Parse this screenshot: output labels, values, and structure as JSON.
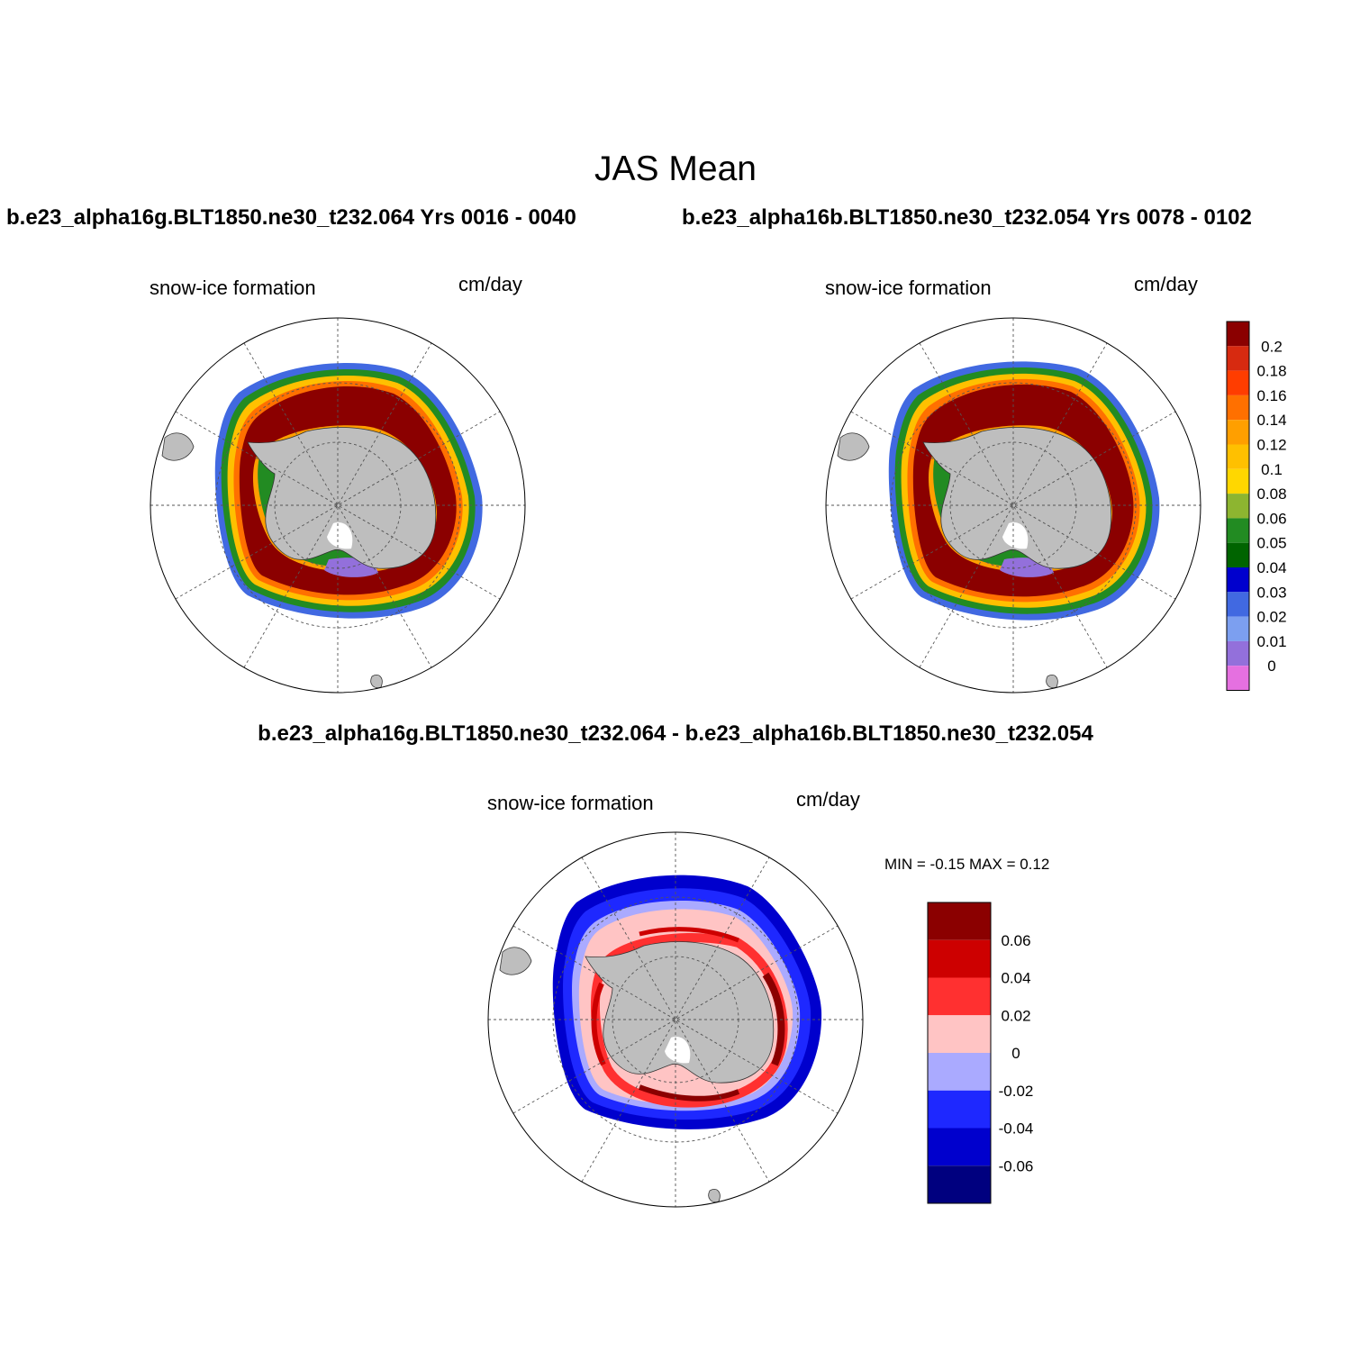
{
  "title": "JAS Mean",
  "runs": {
    "left": "b.e23_alpha16g.BLT1850.ne30_t232.064  Yrs 0016 - 0040",
    "right": "b.e23_alpha16b.BLT1850.ne30_t232.054  Yrs 0078 - 0102"
  },
  "variable": "snow-ice formation",
  "units": "cm/day",
  "difference_title": "b.e23_alpha16g.BLT1850.ne30_t232.064 - b.e23_alpha16b.BLT1850.ne30_t232.054",
  "stats": "MIN =  -0.15 MAX =   0.12",
  "colors": {
    "land": "#bebebe",
    "graticule": "#555555",
    "main_scale": [
      "#e570e0",
      "#9370db",
      "#7c9ff0",
      "#4169e1",
      "#0000cd",
      "#006400",
      "#228b22",
      "#8db530",
      "#ffd700",
      "#ffc000",
      "#ff9f00",
      "#ff7000",
      "#ff3d00",
      "#d72a10",
      "#8b0000"
    ],
    "diff_scale": [
      "#00007f",
      "#0000cd",
      "#1e28ff",
      "#aaaaff",
      "#ffc4c4",
      "#ff3030",
      "#cd0000",
      "#8b0000"
    ]
  },
  "colorbar_main": {
    "levels": [
      "0.2",
      "0.18",
      "0.16",
      "0.14",
      "0.12",
      "0.1",
      "0.08",
      "0.06",
      "0.05",
      "0.04",
      "0.03",
      "0.02",
      "0.01",
      "0"
    ]
  },
  "colorbar_diff": {
    "levels": [
      "0.06",
      "0.04",
      "0.02",
      "0",
      "-0.02",
      "-0.04",
      "-0.06"
    ]
  }
}
